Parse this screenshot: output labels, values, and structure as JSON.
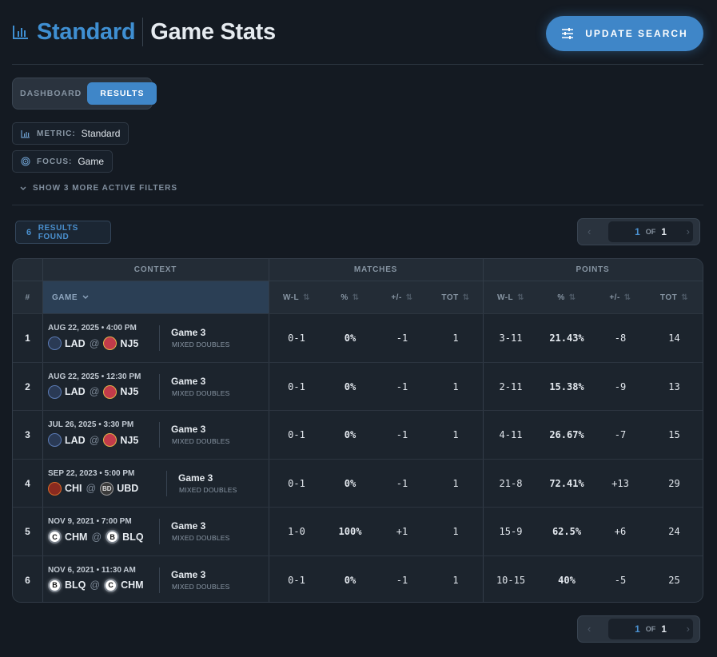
{
  "header": {
    "title": "Standard",
    "subtitle": "Game Stats",
    "update_label": "UPDATE SEARCH"
  },
  "tabs": [
    {
      "label": "DASHBOARD",
      "active": false
    },
    {
      "label": "RESULTS",
      "active": true
    }
  ],
  "filters": {
    "metric": {
      "key": "METRIC:",
      "value": "Standard"
    },
    "focus": {
      "key": "FOCUS:",
      "value": "Game"
    },
    "more_label": "SHOW 3 MORE ACTIVE FILTERS"
  },
  "results": {
    "count": "6",
    "label": "RESULTS FOUND"
  },
  "pager": {
    "current": "1",
    "of": "OF",
    "total": "1"
  },
  "table": {
    "groups": {
      "context": "CONTEXT",
      "matches": "MATCHES",
      "points": "POINTS"
    },
    "columns": {
      "index": "#",
      "game": "GAME",
      "wl": "W-L",
      "pct": "%",
      "diff": "+/-",
      "tot": "TOT"
    },
    "rows": [
      {
        "idx": "1",
        "date": "AUG 22, 2025 • 4:00 PM",
        "away": "LAD",
        "home": "NJ5",
        "game": "Game 3",
        "type": "MIXED DOUBLES",
        "m_wl": "0-1",
        "m_pct": "0%",
        "m_diff": "-1",
        "m_tot": "1",
        "p_wl": "3-11",
        "p_pct": "21.43%",
        "p_diff": "-8",
        "p_tot": "14"
      },
      {
        "idx": "2",
        "date": "AUG 22, 2025 • 12:30 PM",
        "away": "LAD",
        "home": "NJ5",
        "game": "Game 3",
        "type": "MIXED DOUBLES",
        "m_wl": "0-1",
        "m_pct": "0%",
        "m_diff": "-1",
        "m_tot": "1",
        "p_wl": "2-11",
        "p_pct": "15.38%",
        "p_diff": "-9",
        "p_tot": "13"
      },
      {
        "idx": "3",
        "date": "JUL 26, 2025 • 3:30 PM",
        "away": "LAD",
        "home": "NJ5",
        "game": "Game 3",
        "type": "MIXED DOUBLES",
        "m_wl": "0-1",
        "m_pct": "0%",
        "m_diff": "-1",
        "m_tot": "1",
        "p_wl": "4-11",
        "p_pct": "26.67%",
        "p_diff": "-7",
        "p_tot": "15"
      },
      {
        "idx": "4",
        "date": "SEP 22, 2023 • 5:00 PM",
        "away": "CHI",
        "home": "UBD",
        "game": "Game 3",
        "type": "MIXED DOUBLES",
        "m_wl": "0-1",
        "m_pct": "0%",
        "m_diff": "-1",
        "m_tot": "1",
        "p_wl": "21-8",
        "p_pct": "72.41%",
        "p_diff": "+13",
        "p_tot": "29"
      },
      {
        "idx": "5",
        "date": "NOV 9, 2021 • 7:00 PM",
        "away": "CHM",
        "home": "BLQ",
        "game": "Game 3",
        "type": "MIXED DOUBLES",
        "m_wl": "1-0",
        "m_pct": "100%",
        "m_diff": "+1",
        "m_tot": "1",
        "p_wl": "15-9",
        "p_pct": "62.5%",
        "p_diff": "+6",
        "p_tot": "24"
      },
      {
        "idx": "6",
        "date": "NOV 6, 2021 • 11:30 AM",
        "away": "BLQ",
        "home": "CHM",
        "game": "Game 3",
        "type": "MIXED DOUBLES",
        "m_wl": "0-1",
        "m_pct": "0%",
        "m_diff": "-1",
        "m_tot": "1",
        "p_wl": "10-15",
        "p_pct": "40%",
        "p_diff": "-5",
        "p_tot": "25"
      }
    ]
  },
  "logo_marks": {
    "C": "C",
    "B": "B",
    "UBD": "BD"
  },
  "colors": {
    "accent": "#3f86c8",
    "negative": "#e04a4a",
    "positive": "#3fc05a"
  }
}
